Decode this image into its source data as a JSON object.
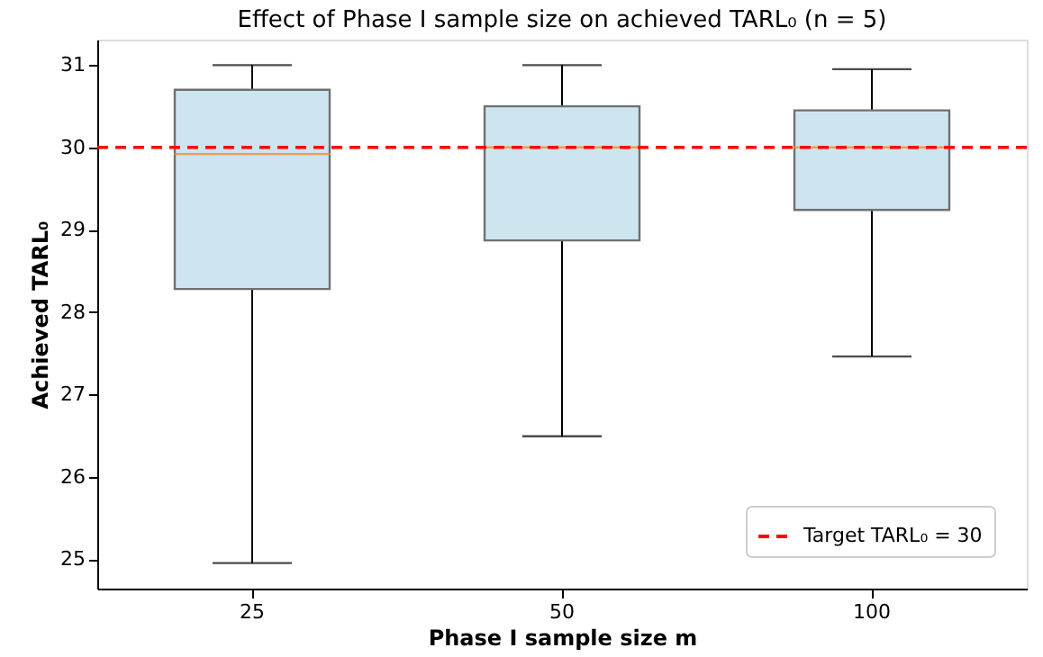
{
  "chart_data": {
    "type": "box",
    "title": "Effect of Phase I sample size on achieved TARL₀ (n = 5)",
    "xlabel": "Phase I sample size m",
    "ylabel": "Achieved TARL₀",
    "categories": [
      "25",
      "50",
      "100"
    ],
    "series": [
      {
        "color": "#cde5ee",
        "boxes": [
          {
            "low": 24.95,
            "q1": 28.28,
            "median": 29.92,
            "q3": 30.7,
            "high": 31.0
          },
          {
            "low": 26.49,
            "q1": 28.87,
            "median": 30.0,
            "q3": 30.5,
            "high": 31.0
          },
          {
            "low": 27.46,
            "q1": 29.24,
            "median": 30.0,
            "q3": 30.45,
            "high": 30.95
          }
        ]
      }
    ],
    "ylim": [
      24.64,
      31.31
    ],
    "yticks": [
      25,
      26,
      27,
      28,
      29,
      30,
      31
    ],
    "ref_lines": [
      {
        "axis": "y",
        "value": 30,
        "label": "Target TARL₀ = 30",
        "color": "#ff0000",
        "line_style": "dashed"
      }
    ],
    "legend": "bottom right",
    "grid": false
  }
}
